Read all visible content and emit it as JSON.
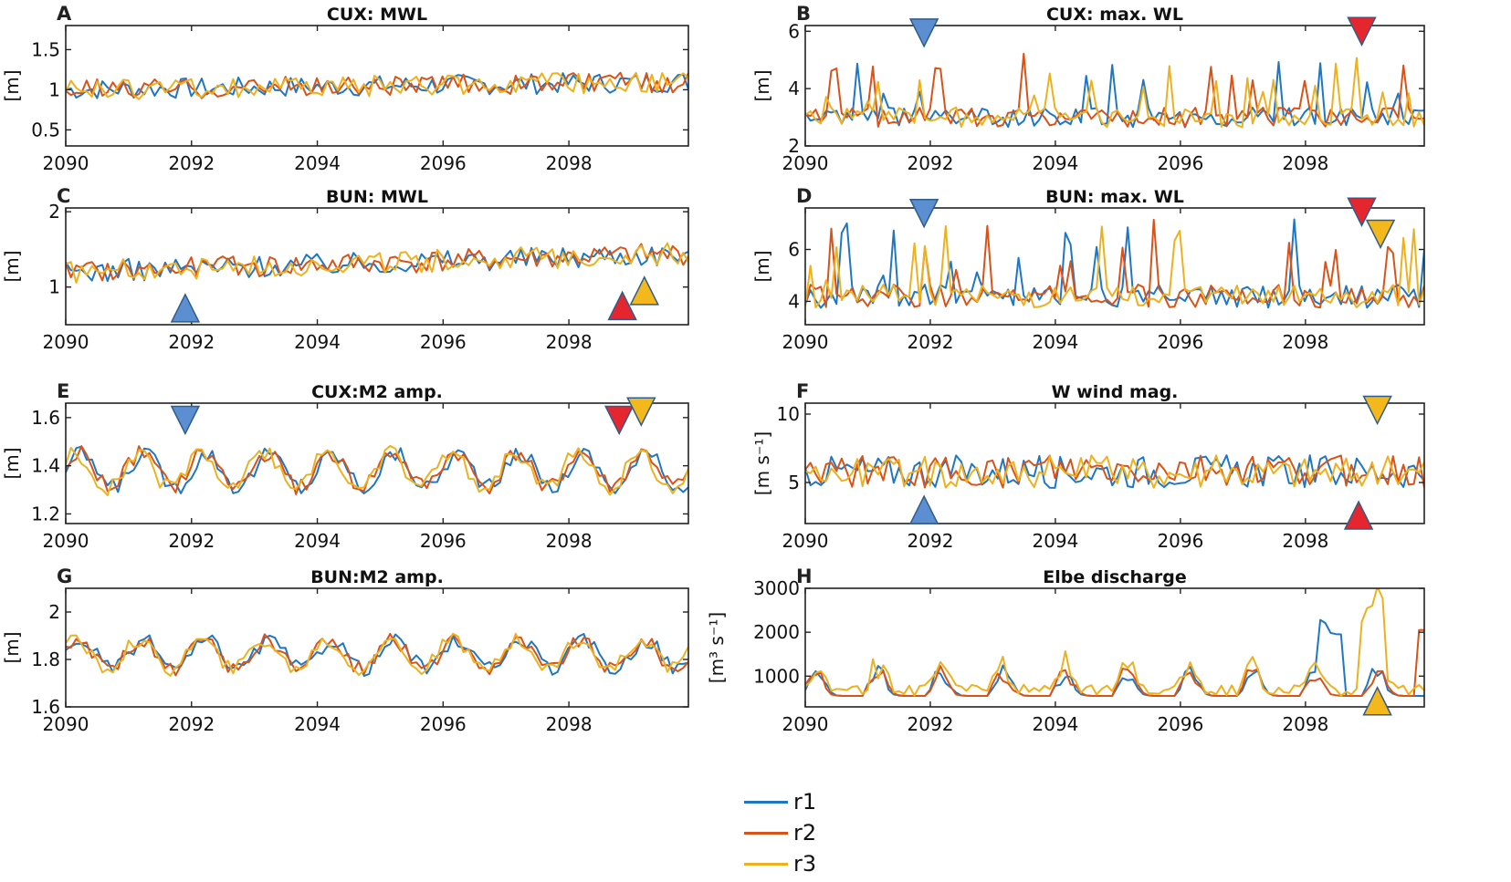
{
  "colors": {
    "r1": "#1f77c4",
    "r2": "#d95319",
    "r3": "#edb120",
    "marker_blue": "#5b8fd1",
    "marker_red": "#e6262e",
    "marker_yellow": "#f2b81c"
  },
  "legend": [
    {
      "name": "r1",
      "color": "#1f77c4"
    },
    {
      "name": "r2",
      "color": "#d95319"
    },
    {
      "name": "r3",
      "color": "#edb120"
    }
  ],
  "chart_data": [
    {
      "letter": "A",
      "title": "CUX: MWL",
      "type": "line",
      "ylabel": "[m]",
      "xlim": [
        2090,
        2099.9
      ],
      "ylim": [
        0.3,
        1.8
      ],
      "xticks": [
        "2090",
        "2092",
        "2094",
        "2096",
        "2098"
      ],
      "yticks": [
        {
          "v": 0.5,
          "label": "0.5"
        },
        {
          "v": 1,
          "label": "1"
        },
        {
          "v": 1.5,
          "label": "1.5"
        }
      ],
      "base": [
        1.0,
        0.8
      ],
      "amp": 0.13,
      "trend": 0.1,
      "markers": []
    },
    {
      "letter": "B",
      "title": "CUX: max. WL",
      "type": "line",
      "ylabel": "[m]",
      "xlim": [
        2090,
        2099.9
      ],
      "ylim": [
        2,
        6.2
      ],
      "xticks": [
        "2090",
        "2092",
        "2094",
        "2096",
        "2098"
      ],
      "yticks": [
        {
          "v": 2,
          "label": "2"
        },
        {
          "v": 4,
          "label": "4"
        },
        {
          "v": 6,
          "label": "6"
        }
      ],
      "base": [
        3.0,
        3.0
      ],
      "amp": 0.35,
      "trend": 0,
      "spiky": true,
      "markers": [
        {
          "x": 2091.9,
          "y": 5.95,
          "dir": "down",
          "color": "blue"
        },
        {
          "x": 2098.9,
          "y": 6.0,
          "dir": "down",
          "color": "red"
        }
      ]
    },
    {
      "letter": "C",
      "title": "BUN: MWL",
      "type": "line",
      "ylabel": "[m]",
      "xlim": [
        2090,
        2099.9
      ],
      "ylim": [
        0.5,
        2.05
      ],
      "xticks": [
        "2090",
        "2092",
        "2094",
        "2096",
        "2098"
      ],
      "yticks": [
        {
          "v": 1,
          "label": "1"
        },
        {
          "v": 2,
          "label": "2"
        }
      ],
      "base": [
        1.2,
        1.1
      ],
      "amp": 0.15,
      "trend": 0.25,
      "markers": [
        {
          "x": 2091.9,
          "y": 0.72,
          "dir": "up",
          "color": "blue"
        },
        {
          "x": 2098.85,
          "y": 0.75,
          "dir": "up",
          "color": "red"
        },
        {
          "x": 2099.2,
          "y": 0.95,
          "dir": "up",
          "color": "yellow"
        }
      ]
    },
    {
      "letter": "D",
      "title": "BUN: max. WL",
      "type": "line",
      "ylabel": "[m]",
      "xlim": [
        2090,
        2099.9
      ],
      "ylim": [
        3.1,
        7.6
      ],
      "xticks": [
        "2090",
        "2092",
        "2094",
        "2096",
        "2098"
      ],
      "yticks": [
        {
          "v": 4,
          "label": "4"
        },
        {
          "v": 6,
          "label": "6"
        }
      ],
      "base": [
        4.2,
        4.2
      ],
      "amp": 0.45,
      "trend": 0,
      "spiky": true,
      "markers": [
        {
          "x": 2091.9,
          "y": 7.4,
          "dir": "down",
          "color": "blue"
        },
        {
          "x": 2098.9,
          "y": 7.45,
          "dir": "down",
          "color": "red"
        },
        {
          "x": 2099.2,
          "y": 6.6,
          "dir": "down",
          "color": "yellow"
        }
      ]
    },
    {
      "letter": "E",
      "title": "CUX:M2 amp.",
      "type": "line",
      "ylabel": "[m]",
      "xlim": [
        2090,
        2099.9
      ],
      "ylim": [
        1.16,
        1.66
      ],
      "xticks": [
        "2090",
        "2092",
        "2094",
        "2096",
        "2098"
      ],
      "yticks": [
        {
          "v": 1.2,
          "label": "1.2"
        },
        {
          "v": 1.4,
          "label": "1.4"
        },
        {
          "v": 1.6,
          "label": "1.6"
        }
      ],
      "base": [
        1.38,
        1.38
      ],
      "amp": 0.07,
      "trend": 0,
      "seasonal": true,
      "markers": [
        {
          "x": 2091.9,
          "y": 1.59,
          "dir": "down",
          "color": "blue"
        },
        {
          "x": 2098.8,
          "y": 1.59,
          "dir": "down",
          "color": "red"
        },
        {
          "x": 2099.15,
          "y": 1.625,
          "dir": "down",
          "color": "yellow"
        }
      ]
    },
    {
      "letter": "F",
      "title": "W wind mag.",
      "type": "line",
      "ylabel": "[m s⁻¹]",
      "xlim": [
        2090,
        2099.9
      ],
      "ylim": [
        2,
        10.8
      ],
      "xticks": [
        "2090",
        "2092",
        "2094",
        "2096",
        "2098"
      ],
      "yticks": [
        {
          "v": 5,
          "label": "5"
        },
        {
          "v": 10,
          "label": "10"
        }
      ],
      "base": [
        5.8,
        5.8
      ],
      "amp": 1.2,
      "trend": 0,
      "markers": [
        {
          "x": 2091.9,
          "y": 3.0,
          "dir": "up",
          "color": "blue"
        },
        {
          "x": 2098.85,
          "y": 2.6,
          "dir": "up",
          "color": "red"
        },
        {
          "x": 2099.15,
          "y": 10.3,
          "dir": "down",
          "color": "yellow"
        }
      ]
    },
    {
      "letter": "G",
      "title": "BUN:M2 amp.",
      "type": "line",
      "ylabel": "[m]",
      "xlim": [
        2090,
        2099.9
      ],
      "ylim": [
        1.6,
        2.1
      ],
      "xticks": [
        "2090",
        "2092",
        "2094",
        "2096",
        "2098"
      ],
      "yticks": [
        {
          "v": 1.6,
          "label": "1.6"
        },
        {
          "v": 1.8,
          "label": "1.8"
        },
        {
          "v": 2,
          "label": "2"
        }
      ],
      "base": [
        1.82,
        1.88
      ],
      "amp": 0.06,
      "trend": 0,
      "seasonal": true,
      "markers": []
    },
    {
      "letter": "H",
      "title": "Elbe discharge",
      "type": "line",
      "ylabel": "[m³ s⁻¹]",
      "xlim": [
        2090,
        2099.9
      ],
      "ylim": [
        300,
        3000
      ],
      "xticks": [
        "2090",
        "2092",
        "2094",
        "2096",
        "2098"
      ],
      "yticks": [
        {
          "v": 1000,
          "label": "1000"
        },
        {
          "v": 2000,
          "label": "2000"
        },
        {
          "v": 3000,
          "label": "3000"
        }
      ],
      "base": [
        900,
        900
      ],
      "amp": 250,
      "trend": 0,
      "discharge": true,
      "markers": [
        {
          "x": 2099.15,
          "y": 430,
          "dir": "up",
          "color": "yellow"
        }
      ]
    }
  ]
}
